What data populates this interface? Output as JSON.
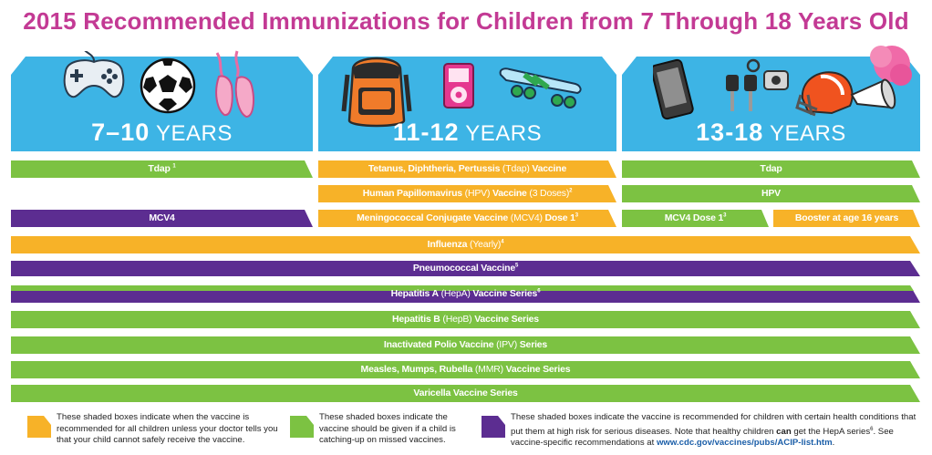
{
  "title": "2015 Recommended Immunizations for Children from 7 Through 18 Years Old",
  "colors": {
    "title": "#c33a94",
    "sky": "#3db4e5",
    "green": "#7cc242",
    "orange": "#f7b228",
    "purple": "#5c2d91"
  },
  "panels": [
    {
      "num": "7–10",
      "label": "YEARS",
      "icons": [
        "game-controller-icon",
        "soccer-ball-icon",
        "ballet-shoes-icon"
      ]
    },
    {
      "num": "11-12",
      "label": "YEARS",
      "icons": [
        "backpack-icon",
        "music-player-icon",
        "skateboard-icon"
      ]
    },
    {
      "num": "13-18",
      "label": "YEARS",
      "icons": [
        "cell-phone-icon",
        "car-keys-icon",
        "football-helmet-icon",
        "megaphone-pompom-icon"
      ]
    }
  ],
  "bars": {
    "tdap_710": {
      "main": "Tdap",
      "sup": "1"
    },
    "tdap_1112": {
      "main": "Tetanus, Diphtheria, Pertussis",
      "abbr": " (Tdap) ",
      "rest": "Vaccine"
    },
    "tdap_1318": {
      "main": "Tdap"
    },
    "hpv_1112": {
      "main": "Human Papillomavirus",
      "abbr": " (HPV) ",
      "rest": "Vaccine",
      "dose": " (3 Doses)",
      "sup": "2"
    },
    "hpv_1318": {
      "main": "HPV"
    },
    "mcv4_710": {
      "main": "MCV4"
    },
    "mcv4_1112": {
      "main": "Meningococcal Conjugate Vaccine",
      "abbr": " (MCV4) ",
      "rest": "Dose 1",
      "sup": "3"
    },
    "mcv4_1318": {
      "main": "MCV4 Dose 1",
      "sup": "3"
    },
    "booster_1318": {
      "main": "Booster at age 16 years"
    },
    "influenza": {
      "main": "Influenza",
      "abbr": " (Yearly)",
      "sup": "4"
    },
    "pneumococcal": {
      "main": "Pneumococcal Vaccine",
      "sup": "5"
    },
    "hepa": {
      "main": "Hepatitis A",
      "abbr": " (HepA) ",
      "rest": "Vaccine Series",
      "sup": "6"
    },
    "hepb": {
      "main": "Hepatitis B",
      "abbr": " (HepB) ",
      "rest": "Vaccine Series"
    },
    "ipv": {
      "main": "Inactivated Polio Vaccine",
      "abbr": " (IPV) ",
      "rest": "Series"
    },
    "mmr": {
      "main": "Measles, Mumps, Rubella",
      "abbr": " (MMR) ",
      "rest": "Vaccine Series"
    },
    "varicella": {
      "main": "Varicella Vaccine Series"
    }
  },
  "legend": [
    {
      "color": "orange",
      "text": "These shaded boxes indicate when the vaccine is recommended for all children unless your doctor tells you that your child cannot safely receive the vaccine."
    },
    {
      "color": "green",
      "text": "These shaded boxes indicate the vaccine should be given if a child is catching-up on missed vaccines."
    },
    {
      "color": "purple",
      "text_a": "These shaded boxes indicate the vaccine is recommended for children with certain health conditions that put them at high risk for serious diseases. Note that healthy children ",
      "text_b": "can",
      "text_c": " get the HepA series",
      "sup": "6",
      "text_d": ". See vaccine-specific recommendations at ",
      "link": "www.cdc.gov/vaccines/pubs/ACIP-list.htm",
      "text_e": "."
    }
  ]
}
